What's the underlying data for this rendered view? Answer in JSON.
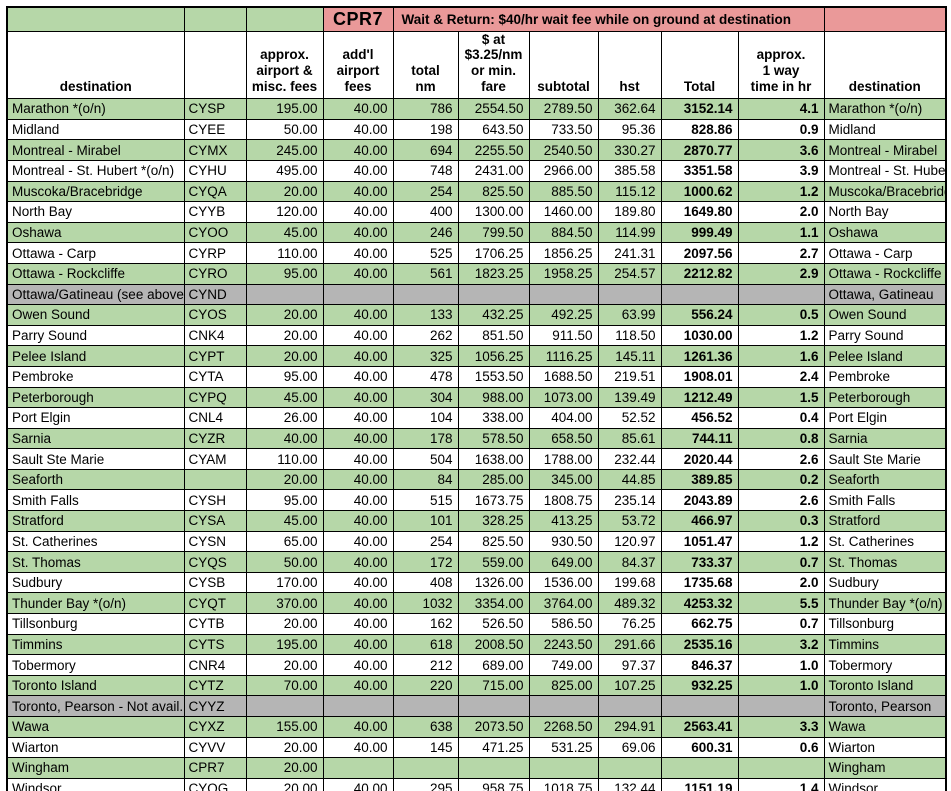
{
  "colors": {
    "green": "#b6d7a8",
    "pink": "#ea9999",
    "gray": "#b5b5b5",
    "border": "#000000",
    "background": "#ffffff"
  },
  "title_row": {
    "cpr7": "CPR7",
    "banner": "Wait & Return: $40/hr wait fee while on ground at destination"
  },
  "columns": [
    "destination",
    "",
    "approx.\nairport &\nmisc. fees",
    "add'l\nairport\nfees",
    "total\nnm",
    "$ at\n$3.25/nm\nor min. fare",
    "subtotal",
    "hst",
    "Total",
    "approx.\n1 way\ntime in hr",
    "destination"
  ],
  "rows": [
    {
      "bg": "green",
      "cells": [
        "Marathon *(o/n)",
        "CYSP",
        "195.00",
        "40.00",
        "786",
        "2554.50",
        "2789.50",
        "362.64",
        "3152.14",
        "4.1",
        "Marathon *(o/n)"
      ]
    },
    {
      "bg": "white",
      "cells": [
        "Midland",
        "CYEE",
        "50.00",
        "40.00",
        "198",
        "643.50",
        "733.50",
        "95.36",
        "828.86",
        "0.9",
        "Midland"
      ]
    },
    {
      "bg": "green",
      "cells": [
        "Montreal - Mirabel",
        "CYMX",
        "245.00",
        "40.00",
        "694",
        "2255.50",
        "2540.50",
        "330.27",
        "2870.77",
        "3.6",
        "Montreal - Mirabel"
      ]
    },
    {
      "bg": "white",
      "cells": [
        "Montreal - St. Hubert *(o/n)",
        "CYHU",
        "495.00",
        "40.00",
        "748",
        "2431.00",
        "2966.00",
        "385.58",
        "3351.58",
        "3.9",
        "Montreal - St. Hubert *(o/n)"
      ]
    },
    {
      "bg": "green",
      "cells": [
        "Muscoka/Bracebridge",
        "CYQA",
        "20.00",
        "40.00",
        "254",
        "825.50",
        "885.50",
        "115.12",
        "1000.62",
        "1.2",
        "Muscoka/Bracebridge"
      ]
    },
    {
      "bg": "white",
      "cells": [
        "North Bay",
        "CYYB",
        "120.00",
        "40.00",
        "400",
        "1300.00",
        "1460.00",
        "189.80",
        "1649.80",
        "2.0",
        "North Bay"
      ]
    },
    {
      "bg": "green",
      "cells": [
        "Oshawa",
        "CYOO",
        "45.00",
        "40.00",
        "246",
        "799.50",
        "884.50",
        "114.99",
        "999.49",
        "1.1",
        "Oshawa"
      ]
    },
    {
      "bg": "white",
      "cells": [
        "Ottawa - Carp",
        "CYRP",
        "110.00",
        "40.00",
        "525",
        "1706.25",
        "1856.25",
        "241.31",
        "2097.56",
        "2.7",
        "Ottawa - Carp"
      ]
    },
    {
      "bg": "green",
      "cells": [
        "Ottawa - Rockcliffe",
        "CYRO",
        "95.00",
        "40.00",
        "561",
        "1823.25",
        "1958.25",
        "254.57",
        "2212.82",
        "2.9",
        "Ottawa - Rockcliffe"
      ]
    },
    {
      "bg": "gray",
      "cells": [
        "Ottawa/Gatineau (see above)",
        "CYND",
        "",
        "",
        "",
        "",
        "",
        "",
        "",
        "",
        "Ottawa, Gatineau"
      ]
    },
    {
      "bg": "green",
      "cells": [
        "Owen Sound",
        "CYOS",
        "20.00",
        "40.00",
        "133",
        "432.25",
        "492.25",
        "63.99",
        "556.24",
        "0.5",
        "Owen Sound"
      ]
    },
    {
      "bg": "white",
      "cells": [
        "Parry Sound",
        "CNK4",
        "20.00",
        "40.00",
        "262",
        "851.50",
        "911.50",
        "118.50",
        "1030.00",
        "1.2",
        "Parry Sound"
      ]
    },
    {
      "bg": "green",
      "cells": [
        "Pelee Island",
        "CYPT",
        "20.00",
        "40.00",
        "325",
        "1056.25",
        "1116.25",
        "145.11",
        "1261.36",
        "1.6",
        "Pelee Island"
      ]
    },
    {
      "bg": "white",
      "cells": [
        "Pembroke",
        "CYTA",
        "95.00",
        "40.00",
        "478",
        "1553.50",
        "1688.50",
        "219.51",
        "1908.01",
        "2.4",
        "Pembroke"
      ]
    },
    {
      "bg": "green",
      "cells": [
        "Peterborough",
        "CYPQ",
        "45.00",
        "40.00",
        "304",
        "988.00",
        "1073.00",
        "139.49",
        "1212.49",
        "1.5",
        "Peterborough"
      ]
    },
    {
      "bg": "white",
      "cells": [
        "Port Elgin",
        "CNL4",
        "26.00",
        "40.00",
        "104",
        "338.00",
        "404.00",
        "52.52",
        "456.52",
        "0.4",
        "Port Elgin"
      ]
    },
    {
      "bg": "green",
      "cells": [
        "Sarnia",
        "CYZR",
        "40.00",
        "40.00",
        "178",
        "578.50",
        "658.50",
        "85.61",
        "744.11",
        "0.8",
        "Sarnia"
      ]
    },
    {
      "bg": "white",
      "cells": [
        "Sault Ste Marie",
        "CYAM",
        "110.00",
        "40.00",
        "504",
        "1638.00",
        "1788.00",
        "232.44",
        "2020.44",
        "2.6",
        "Sault Ste Marie"
      ]
    },
    {
      "bg": "green",
      "cells": [
        "Seaforth",
        "",
        "20.00",
        "40.00",
        "84",
        "285.00",
        "345.00",
        "44.85",
        "389.85",
        "0.2",
        "Seaforth"
      ]
    },
    {
      "bg": "white",
      "cells": [
        "Smith Falls",
        "CYSH",
        "95.00",
        "40.00",
        "515",
        "1673.75",
        "1808.75",
        "235.14",
        "2043.89",
        "2.6",
        "Smith Falls"
      ]
    },
    {
      "bg": "green",
      "cells": [
        "Stratford",
        "CYSA",
        "45.00",
        "40.00",
        "101",
        "328.25",
        "413.25",
        "53.72",
        "466.97",
        "0.3",
        "Stratford"
      ]
    },
    {
      "bg": "white",
      "cells": [
        "St. Catherines",
        "CYSN",
        "65.00",
        "40.00",
        "254",
        "825.50",
        "930.50",
        "120.97",
        "1051.47",
        "1.2",
        "St. Catherines"
      ]
    },
    {
      "bg": "green",
      "cells": [
        "St. Thomas",
        "CYQS",
        "50.00",
        "40.00",
        "172",
        "559.00",
        "649.00",
        "84.37",
        "733.37",
        "0.7",
        "St. Thomas"
      ]
    },
    {
      "bg": "white",
      "cells": [
        "Sudbury",
        "CYSB",
        "170.00",
        "40.00",
        "408",
        "1326.00",
        "1536.00",
        "199.68",
        "1735.68",
        "2.0",
        "Sudbury"
      ]
    },
    {
      "bg": "green",
      "cells": [
        "Thunder Bay *(o/n)",
        "CYQT",
        "370.00",
        "40.00",
        "1032",
        "3354.00",
        "3764.00",
        "489.32",
        "4253.32",
        "5.5",
        "Thunder Bay *(o/n)"
      ]
    },
    {
      "bg": "white",
      "cells": [
        "Tillsonburg",
        "CYTB",
        "20.00",
        "40.00",
        "162",
        "526.50",
        "586.50",
        "76.25",
        "662.75",
        "0.7",
        "Tillsonburg"
      ]
    },
    {
      "bg": "green",
      "cells": [
        "Timmins",
        "CYTS",
        "195.00",
        "40.00",
        "618",
        "2008.50",
        "2243.50",
        "291.66",
        "2535.16",
        "3.2",
        "Timmins"
      ]
    },
    {
      "bg": "white",
      "cells": [
        "Tobermory",
        "CNR4",
        "20.00",
        "40.00",
        "212",
        "689.00",
        "749.00",
        "97.37",
        "846.37",
        "1.0",
        "Tobermory"
      ]
    },
    {
      "bg": "green",
      "cells": [
        "Toronto Island",
        "CYTZ",
        "70.00",
        "40.00",
        "220",
        "715.00",
        "825.00",
        "107.25",
        "932.25",
        "1.0",
        "Toronto Island"
      ]
    },
    {
      "bg": "gray",
      "cells": [
        "Toronto, Pearson - Not avail.",
        "CYYZ",
        "",
        "",
        "",
        "",
        "",
        "",
        "",
        "",
        "Toronto, Pearson"
      ]
    },
    {
      "bg": "green",
      "cells": [
        "Wawa",
        "CYXZ",
        "155.00",
        "40.00",
        "638",
        "2073.50",
        "2268.50",
        "294.91",
        "2563.41",
        "3.3",
        "Wawa"
      ]
    },
    {
      "bg": "white",
      "cells": [
        "Wiarton",
        "CYVV",
        "20.00",
        "40.00",
        "145",
        "471.25",
        "531.25",
        "69.06",
        "600.31",
        "0.6",
        "Wiarton"
      ]
    },
    {
      "bg": "green",
      "cells": [
        "Wingham",
        "CPR7",
        "20.00",
        "",
        "",
        "",
        "",
        "",
        "",
        "",
        "Wingham"
      ]
    },
    {
      "bg": "white",
      "cells": [
        "Windsor",
        "CYQG",
        "20.00",
        "40.00",
        "295",
        "958.75",
        "1018.75",
        "132.44",
        "1151.19",
        "1.4",
        "Windsor"
      ]
    }
  ]
}
